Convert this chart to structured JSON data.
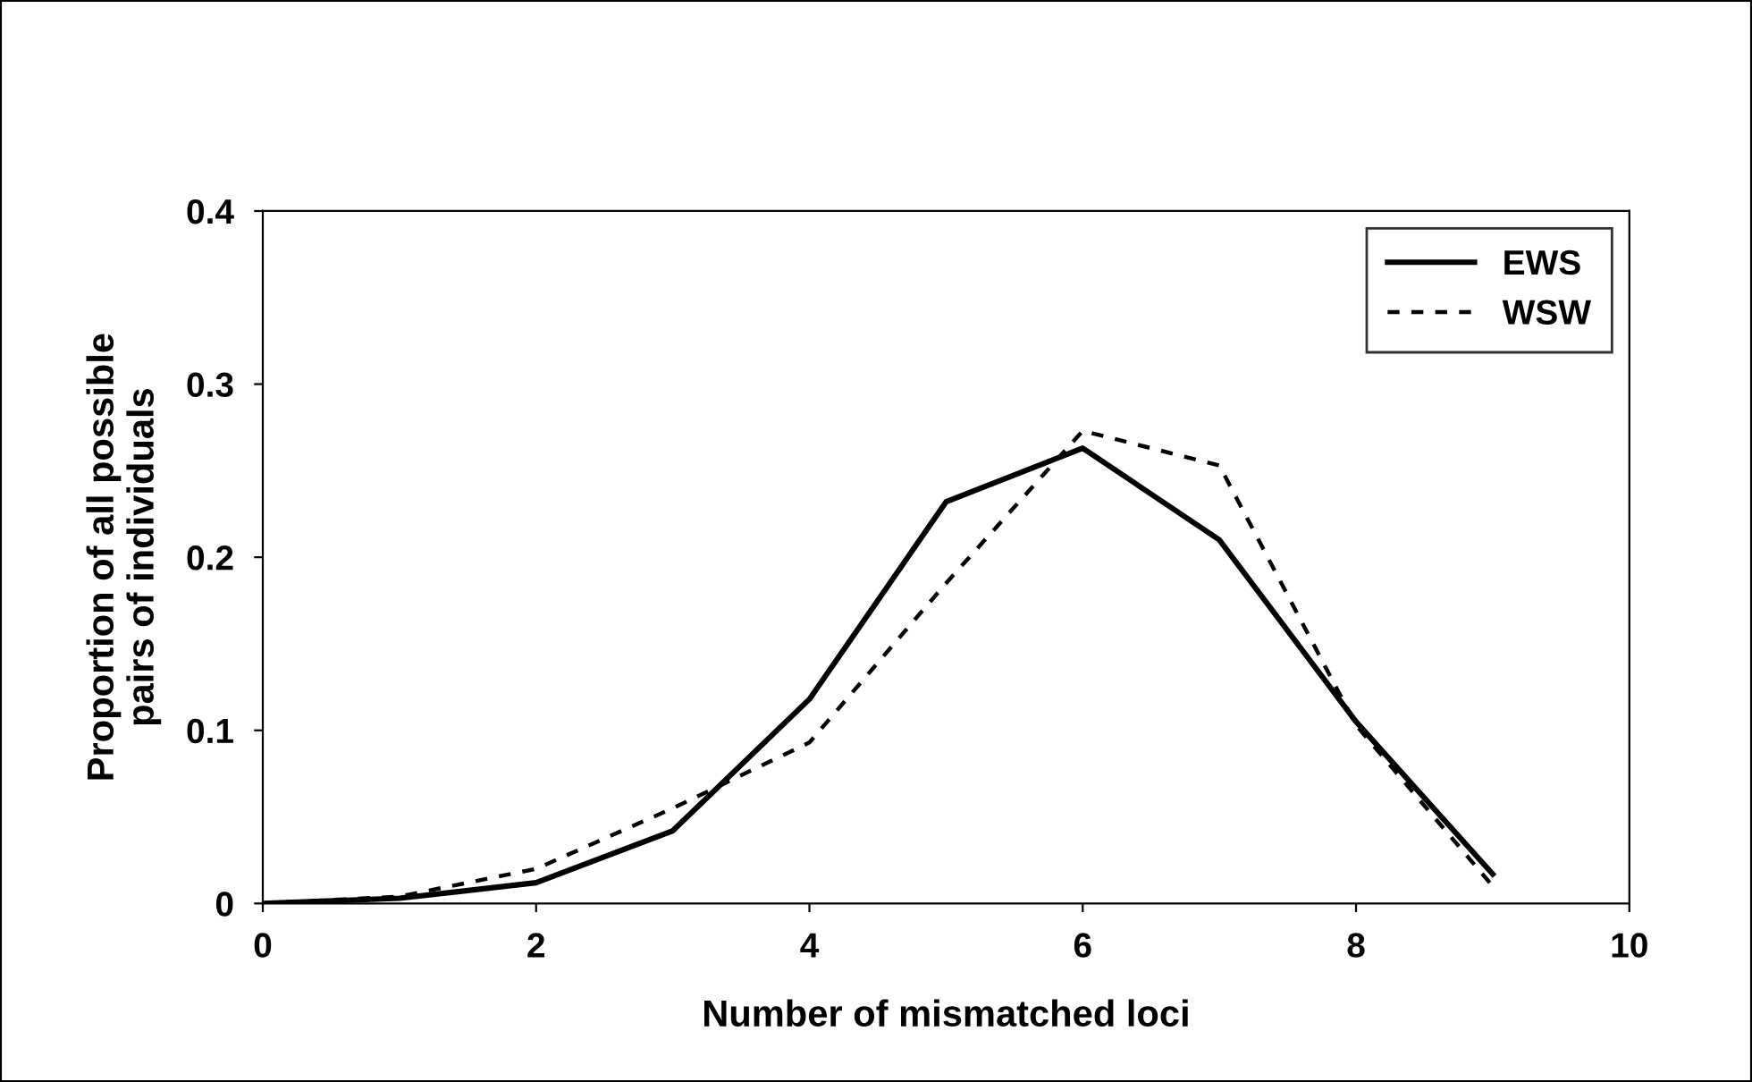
{
  "chart_data": {
    "type": "line",
    "xlabel": "Number of mismatched loci",
    "ylabel": "Proportion of all possible\npairs of individuals",
    "x": [
      0,
      1,
      2,
      3,
      4,
      5,
      6,
      7,
      8,
      9
    ],
    "series": [
      {
        "name": "EWS",
        "color": "#000000",
        "line_style": "solid",
        "values": [
          0.0,
          0.003,
          0.012,
          0.042,
          0.118,
          0.232,
          0.263,
          0.21,
          0.105,
          0.017
        ]
      },
      {
        "name": "WSW",
        "color": "#000000",
        "line_style": "dashed",
        "values": [
          0.0,
          0.004,
          0.02,
          0.055,
          0.093,
          0.185,
          0.273,
          0.253,
          0.103,
          0.01
        ]
      }
    ],
    "xlim": [
      0,
      10
    ],
    "xticks": [
      0,
      2,
      4,
      6,
      8,
      10
    ],
    "ylim": [
      0,
      0.4
    ],
    "yticks": [
      {
        "value": 0,
        "label": "0"
      },
      0.1,
      0.2,
      0.3,
      0.4
    ],
    "grid": false,
    "legend": "top right",
    "marker": "none"
  }
}
